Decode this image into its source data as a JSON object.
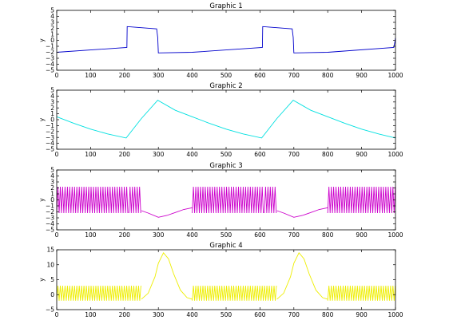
{
  "chart_data": [
    {
      "type": "line",
      "title": "Graphic 1",
      "xlabel": "",
      "ylabel": "y",
      "xlim": [
        0,
        1000
      ],
      "ylim": [
        -5,
        5
      ],
      "xticks": [
        0,
        100,
        200,
        300,
        400,
        500,
        600,
        700,
        800,
        900,
        1000
      ],
      "yticks": [
        5,
        4,
        3,
        2,
        1,
        0,
        -1,
        -2,
        -3,
        -4,
        -5
      ],
      "grid": false,
      "color": "#0000cc",
      "period": 400,
      "series": [
        {
          "x": [
            0,
            207,
            208,
            295,
            298,
            300,
            400,
            607,
            608,
            695,
            698,
            700,
            800,
            995,
            998,
            1000
          ],
          "y": [
            -2.0,
            -1.2,
            2.3,
            1.9,
            0.5,
            -2.1,
            -2.0,
            -1.2,
            2.3,
            1.9,
            0.5,
            -2.1,
            -2.0,
            -1.2,
            -0.3,
            0.4
          ]
        }
      ]
    },
    {
      "type": "line",
      "title": "Graphic 2",
      "xlabel": "",
      "ylabel": "y",
      "xlim": [
        0,
        1000
      ],
      "ylim": [
        -5,
        5
      ],
      "xticks": [
        0,
        100,
        200,
        300,
        400,
        500,
        600,
        700,
        800,
        900,
        1000
      ],
      "yticks": [
        5,
        4,
        3,
        2,
        1,
        0,
        -1,
        -2,
        -3,
        -4,
        -5
      ],
      "grid": false,
      "color": "#00e0e0",
      "series": [
        {
          "x": [
            0,
            50,
            100,
            150,
            205,
            250,
            298,
            350,
            400,
            450,
            500,
            550,
            605,
            650,
            698,
            750,
            800,
            850,
            900,
            950,
            1000
          ],
          "y": [
            0.5,
            -0.6,
            -1.6,
            -2.4,
            -3.1,
            0.2,
            3.3,
            1.6,
            0.5,
            -0.6,
            -1.6,
            -2.4,
            -3.1,
            0.2,
            3.3,
            1.6,
            0.5,
            -0.6,
            -1.6,
            -2.4,
            -3.1
          ]
        }
      ]
    },
    {
      "type": "line",
      "title": "Graphic 3",
      "xlabel": "",
      "ylabel": "y",
      "xlim": [
        0,
        1000
      ],
      "ylim": [
        -5,
        5
      ],
      "xticks": [
        0,
        100,
        200,
        300,
        400,
        500,
        600,
        700,
        800,
        900,
        1000
      ],
      "yticks": [
        5,
        4,
        3,
        2,
        1,
        0,
        -1,
        -2,
        -3,
        -4,
        -5
      ],
      "grid": false,
      "color": "#cc00cc",
      "oscillation_segments": [
        [
          0,
          210
        ],
        [
          213,
          250
        ],
        [
          400,
          610
        ],
        [
          613,
          650
        ],
        [
          800,
          1000
        ]
      ],
      "oscillation_period": 7,
      "oscillation_range": [
        -2.2,
        2.2
      ],
      "dips": [
        {
          "x": [
            250,
            270,
            300,
            325,
            350,
            375,
            400
          ],
          "y": [
            -1.8,
            -2.2,
            -2.9,
            -2.6,
            -2.1,
            -1.6,
            -1.3
          ]
        },
        {
          "x": [
            650,
            670,
            700,
            725,
            750,
            775,
            800
          ],
          "y": [
            -1.8,
            -2.2,
            -2.9,
            -2.6,
            -2.1,
            -1.6,
            -1.3
          ]
        }
      ]
    },
    {
      "type": "line",
      "title": "Graphic 4",
      "xlabel": "",
      "ylabel": "y",
      "xlim": [
        0,
        1000
      ],
      "ylim": [
        -5,
        15
      ],
      "xticks": [
        0,
        100,
        200,
        300,
        400,
        500,
        600,
        700,
        800,
        900,
        1000
      ],
      "yticks": [
        15,
        10,
        5,
        0,
        -5
      ],
      "grid": false,
      "color": "#eeee00",
      "oscillation_segments": [
        [
          0,
          250
        ],
        [
          400,
          650
        ],
        [
          800,
          1000
        ]
      ],
      "oscillation_period": 7,
      "oscillation_range": [
        -2.0,
        3.0
      ],
      "bumps": [
        {
          "x": [
            250,
            270,
            290,
            300,
            315,
            330,
            345,
            365,
            385,
            400
          ],
          "y": [
            -1.5,
            0.5,
            6.0,
            10.5,
            14.0,
            12.0,
            7.0,
            1.5,
            -1.0,
            -1.5
          ]
        },
        {
          "x": [
            650,
            670,
            690,
            700,
            715,
            730,
            745,
            765,
            785,
            800
          ],
          "y": [
            -1.5,
            0.5,
            6.0,
            10.5,
            14.0,
            12.0,
            7.0,
            1.5,
            -1.0,
            -1.5
          ]
        }
      ]
    }
  ]
}
